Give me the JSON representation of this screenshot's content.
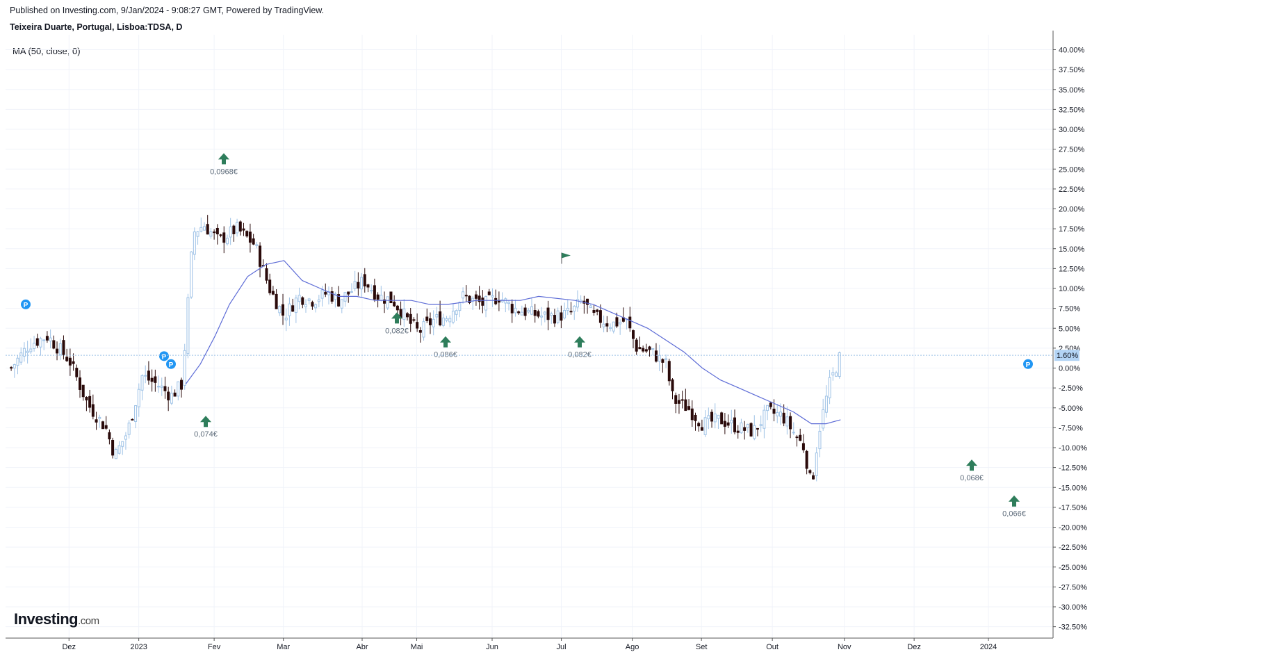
{
  "header": {
    "published": "Published on Investing.com, 9/Jan/2024 - 9:08:27 GMT, Powered by TradingView.",
    "symbol": "Teixeira Duarte, Portugal, Lisboa:TDSA, D"
  },
  "indicator_label": "MA (50, close, 0)",
  "logo": {
    "main": "Investing",
    "suffix": ".com"
  },
  "chart_data": {
    "type": "candlestick",
    "y_unit": "percent change",
    "ylim": [
      -32.5,
      40.0
    ],
    "y_ticks": [
      "40.00%",
      "37.50%",
      "35.00%",
      "32.50%",
      "30.00%",
      "27.50%",
      "25.00%",
      "22.50%",
      "20.00%",
      "17.50%",
      "15.00%",
      "12.50%",
      "10.00%",
      "7.50%",
      "5.00%",
      "2.50%",
      "0.00%",
      "-2.50%",
      "-5.00%",
      "-7.50%",
      "-10.00%",
      "-12.50%",
      "-15.00%",
      "-17.50%",
      "-20.00%",
      "-22.50%",
      "-25.00%",
      "-27.50%",
      "-30.00%",
      "-32.50%"
    ],
    "x_ticks": [
      "Dez",
      "2023",
      "Fev",
      "Mar",
      "Abr",
      "Mai",
      "Jun",
      "Jul",
      "Ago",
      "Set",
      "Out",
      "Nov",
      "Dez",
      "2024"
    ],
    "last_value": 1.6,
    "last_label": "1.60%",
    "ma_series": {
      "name": "MA (50, close, 0)",
      "color": "#5c6bd6"
    },
    "colors": {
      "up_border": "#9ec2e6",
      "up_fill": "#ffffff",
      "down": "#2a0a0a",
      "ma": "#5c6bd6",
      "marker": "#2e7d5b",
      "p_marker": "#2196f3",
      "last_bg": "#b3d4f5"
    },
    "annotations": [
      {
        "type": "arrow",
        "at": "Fev",
        "value": 27.0,
        "label": "0,0968€"
      },
      {
        "type": "arrow",
        "at": "Jan",
        "value": -6.0,
        "label": "0,074€"
      },
      {
        "type": "arrow",
        "at": "Abr",
        "value": 7.0,
        "label": "0,082€"
      },
      {
        "type": "arrow",
        "at": "Mai",
        "value": 4.0,
        "label": "0,086€"
      },
      {
        "type": "arrow",
        "at": "Jul",
        "value": 4.0,
        "label": "0,082€"
      },
      {
        "type": "arrow",
        "at": "Dez",
        "value": -11.5,
        "label": "0,068€"
      },
      {
        "type": "arrow",
        "at": "Dez",
        "value": -16.0,
        "label": "0,066€"
      },
      {
        "type": "flag",
        "at": "Jun",
        "value": 14.5,
        "label": ""
      },
      {
        "type": "P",
        "at": "Nov 2022",
        "value": 8.0,
        "label": "P"
      },
      {
        "type": "P",
        "at": "Jan",
        "value": 1.5,
        "label": "P"
      },
      {
        "type": "P",
        "at": "Jan",
        "value": 0.5,
        "label": "P"
      },
      {
        "type": "P",
        "at": "Jan 2024",
        "value": 0.5,
        "label": "P"
      }
    ],
    "anchors": [
      [
        0,
        0.0
      ],
      [
        10,
        3.0
      ],
      [
        20,
        4.0
      ],
      [
        32,
        1.0
      ],
      [
        42,
        -4.5
      ],
      [
        52,
        -7.5
      ],
      [
        57,
        -11.0
      ],
      [
        64,
        -8.0
      ],
      [
        72,
        -1.0
      ],
      [
        80,
        -2.0
      ],
      [
        88,
        -3.5
      ],
      [
        94,
        -2.0
      ],
      [
        96,
        4.5
      ],
      [
        100,
        17.0
      ],
      [
        106,
        18.0
      ],
      [
        114,
        16.0
      ],
      [
        124,
        17.5
      ],
      [
        134,
        15.5
      ],
      [
        142,
        10.0
      ],
      [
        150,
        6.5
      ],
      [
        158,
        9.0
      ],
      [
        166,
        8.5
      ],
      [
        174,
        9.5
      ],
      [
        180,
        8.5
      ],
      [
        186,
        9.5
      ],
      [
        194,
        11.0
      ],
      [
        202,
        9.0
      ],
      [
        210,
        8.5
      ],
      [
        218,
        6.0
      ],
      [
        224,
        4.5
      ],
      [
        232,
        6.0
      ],
      [
        240,
        6.5
      ],
      [
        248,
        9.0
      ],
      [
        254,
        8.5
      ],
      [
        260,
        8.0
      ],
      [
        268,
        9.0
      ],
      [
        276,
        7.5
      ],
      [
        284,
        7.0
      ],
      [
        292,
        6.5
      ],
      [
        300,
        6.5
      ],
      [
        308,
        7.0
      ],
      [
        314,
        8.5
      ],
      [
        320,
        6.5
      ],
      [
        330,
        5.5
      ],
      [
        338,
        6.0
      ],
      [
        344,
        2.5
      ],
      [
        352,
        2.0
      ],
      [
        360,
        0.5
      ],
      [
        364,
        -4.0
      ],
      [
        372,
        -5.0
      ],
      [
        380,
        -7.0
      ],
      [
        390,
        -6.5
      ],
      [
        400,
        -7.5
      ],
      [
        408,
        -8.0
      ],
      [
        416,
        -5.5
      ],
      [
        424,
        -6.0
      ],
      [
        430,
        -8.0
      ],
      [
        436,
        -10.0
      ],
      [
        440,
        -15.0
      ],
      [
        444,
        -8.0
      ],
      [
        450,
        -2.0
      ],
      [
        456,
        1.6
      ]
    ],
    "ma_anchors": [
      [
        96,
        -2.0
      ],
      [
        104,
        0.5
      ],
      [
        112,
        4.0
      ],
      [
        120,
        8.0
      ],
      [
        130,
        11.5
      ],
      [
        140,
        13.0
      ],
      [
        150,
        13.5
      ],
      [
        160,
        11.0
      ],
      [
        170,
        10.0
      ],
      [
        180,
        9.0
      ],
      [
        190,
        9.0
      ],
      [
        200,
        8.5
      ],
      [
        210,
        8.5
      ],
      [
        220,
        8.5
      ],
      [
        230,
        8.0
      ],
      [
        240,
        8.0
      ],
      [
        256,
        8.5
      ],
      [
        270,
        8.5
      ],
      [
        280,
        8.5
      ],
      [
        290,
        9.0
      ],
      [
        310,
        8.5
      ],
      [
        320,
        8.0
      ],
      [
        330,
        7.0
      ],
      [
        340,
        6.0
      ],
      [
        350,
        5.0
      ],
      [
        360,
        3.5
      ],
      [
        370,
        2.0
      ],
      [
        380,
        0.0
      ],
      [
        390,
        -1.5
      ],
      [
        400,
        -2.5
      ],
      [
        410,
        -3.5
      ],
      [
        420,
        -4.5
      ],
      [
        430,
        -5.5
      ],
      [
        440,
        -7.0
      ],
      [
        448,
        -7.0
      ],
      [
        456,
        -6.5
      ]
    ]
  }
}
